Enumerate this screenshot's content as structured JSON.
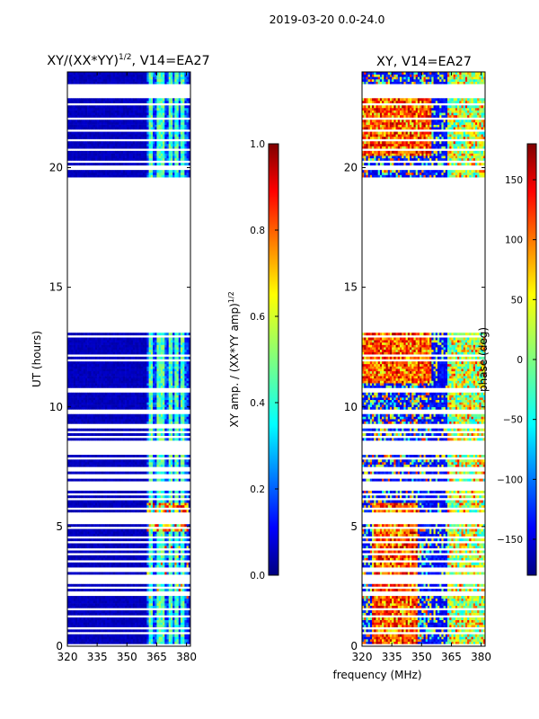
{
  "suptitle": "2019-03-20 0.0-24.0",
  "chart_data": [
    {
      "type": "heatmap",
      "title": "XY/(XX*YY)",
      "title_superscript": "1/2",
      "title_suffix": ", V14=EA27",
      "xlabel": "",
      "ylabel": "UT (hours)",
      "xlim": [
        320,
        382
      ],
      "ylim": [
        0,
        24
      ],
      "xticks": [
        "320",
        "335",
        "350",
        "365",
        "380"
      ],
      "yticks": [
        "0",
        "5",
        "10",
        "15",
        "20"
      ],
      "colorbar": {
        "label": "XY amp. / (XX*YY amp)",
        "label_superscript": "1/2",
        "range": [
          0.0,
          1.0
        ],
        "ticks": [
          "0.0",
          "0.2",
          "0.4",
          "0.6",
          "0.8",
          "1.0"
        ],
        "colormap": "jet"
      }
    },
    {
      "type": "heatmap",
      "title": "XY, V14=EA27",
      "xlabel": "frequency (MHz)",
      "ylabel": "",
      "xlim": [
        320,
        382
      ],
      "ylim": [
        0,
        24
      ],
      "xticks": [
        "320",
        "335",
        "350",
        "365",
        "380"
      ],
      "yticks": [
        "0",
        "5",
        "10",
        "15",
        "20"
      ],
      "colorbar": {
        "label": "phase (deg)",
        "range": [
          -180,
          180
        ],
        "ticks": [
          "-150",
          "-100",
          "-50",
          "0",
          "50",
          "100",
          "150"
        ],
        "colormap": "jet"
      }
    }
  ]
}
